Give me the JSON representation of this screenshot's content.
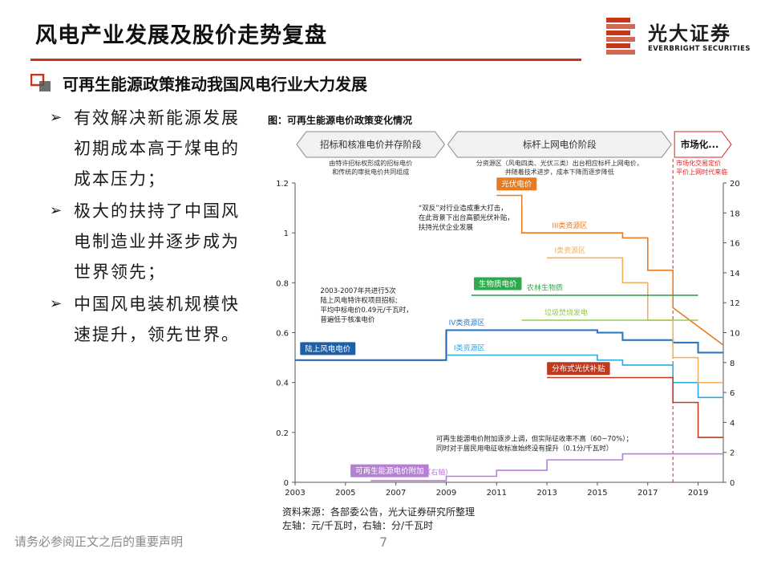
{
  "header": {
    "title": "风电产业发展及股价走势复盘"
  },
  "logo": {
    "name": "光大证券",
    "english": "EVERBRIGHT SECURITIES",
    "color": "#c8361a"
  },
  "section": {
    "title": "可再生能源政策推动我国风电行业大力发展"
  },
  "bullets": [
    "有效解决新能源发展初期成本高于煤电的成本压力；",
    "极大的扶持了中国风电制造业并逐步成为世界领先；",
    "中国风电装机规模快速提升，领先世界。"
  ],
  "bullet_lines": [
    [
      "有效解决新能源发展",
      "初期成本高于煤电的",
      "成本压力；"
    ],
    [
      "极大的扶持了中国风",
      "电制造业并逐步成为",
      "世界领先；"
    ],
    [
      "中国风电装机规模快",
      "速提升，领先世界。"
    ]
  ],
  "chart_data": {
    "type": "line",
    "title": "图：可再生能源电价政策变化情况",
    "x_ticks": [
      2003,
      2005,
      2007,
      2009,
      2011,
      2013,
      2015,
      2017,
      2019
    ],
    "xlim": [
      2003,
      2020
    ],
    "y_left": {
      "unit": "元/千瓦时",
      "ticks": [
        0,
        0.2,
        0.4,
        0.6,
        0.8,
        1,
        1.2
      ],
      "labels": [
        "0",
        "0.2",
        "0.4",
        "0.6",
        "0.8",
        "1",
        "1.2"
      ],
      "lim": [
        0,
        1.2
      ]
    },
    "y_right": {
      "unit": "分/千瓦时",
      "ticks": [
        0,
        2,
        4,
        6,
        8,
        10,
        12,
        14,
        16,
        18,
        20
      ],
      "lim": [
        0,
        20
      ]
    },
    "phases": [
      {
        "label": "招标和核准电价并存阶段",
        "start": 2003,
        "end": 2009,
        "note": [
          "由特许招标权形成的招标电价",
          "和传统的审批电价共同组成"
        ],
        "color": "#888888"
      },
      {
        "label": "标杆上网电价阶段",
        "start": 2009,
        "end": 2018,
        "note": [
          "分资源区（风电四类、光伏三类）出台相应标杆上网电价，",
          "并随着技术进步，成本下降而逐步降低"
        ],
        "color": "#888888"
      },
      {
        "label": "市场化...",
        "start": 2018,
        "end": 2020,
        "note": [
          "市场化交易定价",
          "平价上网时代来临"
        ],
        "color": "#e02020"
      }
    ],
    "series": [
      {
        "name": "陆上风电电价",
        "axis": "left",
        "color": "#1f5fa8",
        "x": [
          2003,
          2009,
          2009,
          2015,
          2015,
          2016,
          2016,
          2018,
          2018,
          2019,
          2019,
          2020
        ],
        "y": [
          0.49,
          0.49,
          0.61,
          0.61,
          0.6,
          0.6,
          0.57,
          0.57,
          0.56,
          0.56,
          0.52,
          0.52
        ]
      },
      {
        "name": "IV类资源区",
        "axis": "left",
        "color": "#2a7ac2",
        "x": [
          2009,
          2015,
          2015,
          2016,
          2016,
          2018,
          2018,
          2019,
          2019,
          2020
        ],
        "y": [
          0.61,
          0.61,
          0.6,
          0.6,
          0.57,
          0.57,
          0.56,
          0.56,
          0.52,
          0.52
        ]
      },
      {
        "name": "I类资源区",
        "axis": "left",
        "color": "#2aa9df",
        "x": [
          2009,
          2015,
          2015,
          2016,
          2016,
          2018,
          2018,
          2019,
          2019,
          2020
        ],
        "y": [
          0.51,
          0.51,
          0.49,
          0.49,
          0.47,
          0.47,
          0.4,
          0.4,
          0.34,
          0.34
        ]
      },
      {
        "name": "光伏电价 III类资源区",
        "axis": "left",
        "color": "#e87b22",
        "x": [
          2011,
          2012,
          2012,
          2016,
          2016,
          2017,
          2017,
          2018,
          2018,
          2020
        ],
        "y": [
          1.15,
          1.15,
          1.0,
          1.0,
          0.98,
          0.98,
          0.85,
          0.85,
          0.7,
          0.55
        ]
      },
      {
        "name": "光伏电价 I类资源区",
        "axis": "left",
        "color": "#f0b060",
        "x": [
          2013,
          2016,
          2016,
          2017,
          2017,
          2018,
          2018,
          2019,
          2019,
          2020
        ],
        "y": [
          0.9,
          0.9,
          0.8,
          0.8,
          0.65,
          0.65,
          0.5,
          0.5,
          0.4,
          0.4
        ]
      },
      {
        "name": "农林生物质",
        "axis": "left",
        "color": "#2fa84f",
        "x": [
          2010,
          2019
        ],
        "y": [
          0.75,
          0.75
        ]
      },
      {
        "name": "垃圾焚烧发电",
        "axis": "left",
        "color": "#9bc850",
        "x": [
          2012,
          2019
        ],
        "y": [
          0.65,
          0.65
        ]
      },
      {
        "name": "分布式光伏补贴",
        "axis": "left",
        "color": "#c03a20",
        "x": [
          2013,
          2018,
          2018,
          2019,
          2019,
          2020
        ],
        "y": [
          0.42,
          0.42,
          0.32,
          0.32,
          0.18,
          0.18
        ]
      },
      {
        "name": "可再生能源电价附加",
        "axis": "right",
        "color": "#b57fd6",
        "x": [
          2006,
          2009,
          2009,
          2011,
          2011,
          2013,
          2013,
          2016,
          2016,
          2020
        ],
        "y": [
          0.1,
          0.1,
          0.4,
          0.4,
          0.8,
          0.8,
          1.5,
          1.5,
          1.9,
          1.9
        ]
      }
    ],
    "series_labels": [
      {
        "text": "陆上风电电价",
        "series": 0,
        "style": "box",
        "x": 2003.2,
        "y": 0.52
      },
      {
        "text": "IV类资源区",
        "series": 1,
        "style": "text",
        "x": 2009.1,
        "y": 0.63
      },
      {
        "text": "I类资源区",
        "series": 2,
        "style": "text",
        "x": 2009.3,
        "y": 0.53
      },
      {
        "text": "光伏电价",
        "series": 3,
        "style": "box",
        "x": 2011.0,
        "y": 1.18
      },
      {
        "text": "III类资源区",
        "series": 3,
        "style": "text",
        "x": 2013.2,
        "y": 1.02
      },
      {
        "text": "I类资源区",
        "series": 4,
        "style": "text",
        "x": 2013.3,
        "y": 0.92
      },
      {
        "text": "生物质电价",
        "series": 5,
        "style": "box",
        "x": 2010.1,
        "y": 0.78
      },
      {
        "text": "农林生物质",
        "series": 5,
        "style": "text",
        "x": 2012.2,
        "y": 0.77
      },
      {
        "text": "垃圾焚烧发电",
        "series": 6,
        "style": "text",
        "x": 2012.9,
        "y": 0.67
      },
      {
        "text": "分布式光伏补贴",
        "series": 7,
        "style": "box",
        "x": 2013.0,
        "y": 0.44
      },
      {
        "text": "可再生能源电价附加",
        "series": 8,
        "style": "box",
        "x": 2005.2,
        "y": 0.03
      },
      {
        "text": "（右轴）",
        "series": 8,
        "style": "text",
        "x": 2008.1,
        "y": 0.03
      }
    ],
    "annotations": [
      {
        "lines": [
          "2003-2007年共进行5次",
          "陆上风电特许权项目招标;",
          "平均中标电价0.49元/千瓦时，",
          "普遍低于核准电价"
        ],
        "x": 2004.0,
        "y": 0.76
      },
      {
        "lines": [
          "“双反”对行业造成重大打击，",
          "在此背景下出台高额光伏补贴，",
          "扶持光伏企业发展"
        ],
        "x": 2007.9,
        "y": 1.09
      },
      {
        "lines": [
          "可再生能源电价附加逐步上调，但实际征收率不高（60~70%）；",
          "同时对于居民用电征收标准始终没有提升（0.1分/千瓦时）"
        ],
        "x": 2008.6,
        "y": 0.165
      }
    ]
  },
  "source": {
    "line1": "资料来源：各部委公告，光大证券研究所整理",
    "line2": "左轴：元/千瓦时，右轴：分/千瓦时"
  },
  "footer": {
    "note": "请务必参阅正文之后的重要声明",
    "page": "7"
  }
}
